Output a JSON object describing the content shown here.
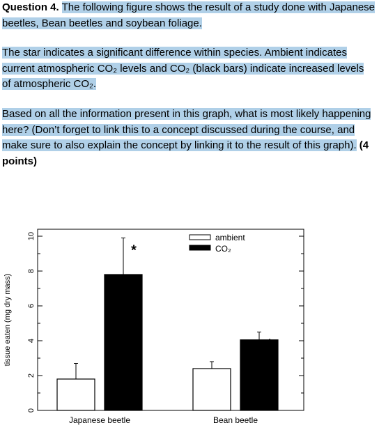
{
  "question": {
    "label": "Question 4.",
    "intro": "The following figure shows the result of a study done with Japanese beetles, Bean beetles and soybean foliage.",
    "note": "The star indicates a significant difference within species. Ambient indicates current atmospheric CO₂ levels and CO₂ (black bars) indicate increased levels of atmospheric CO₂.",
    "prompt": "Based on all the information present in this graph, what is most likely happening here? (Don’t forget to link this to a concept discussed during the course, and make sure to also explain the concept by linking it to the result of this graph).",
    "points": "(4 points)",
    "highlight_color": "#b0d0e8"
  },
  "chart_data": {
    "type": "bar",
    "categories": [
      "Japanese beetle",
      "Bean beetle"
    ],
    "series": [
      {
        "name": "ambient",
        "values": [
          1.8,
          2.4
        ],
        "errors": [
          0.9,
          0.4
        ],
        "color": "#ffffff"
      },
      {
        "name": "CO₂",
        "values": [
          7.8,
          4.05
        ],
        "errors": [
          2.1,
          0.45
        ],
        "color": "#000000"
      }
    ],
    "significance_marks": [
      "*",
      "*"
    ],
    "ylabel": "tissue eaten (mg dry mass)",
    "xlabel": "",
    "ylim": [
      0,
      10
    ],
    "yticks": [
      "0",
      "2",
      "4",
      "6",
      "8",
      "10"
    ],
    "legend_position": "top-right",
    "grid": false
  }
}
